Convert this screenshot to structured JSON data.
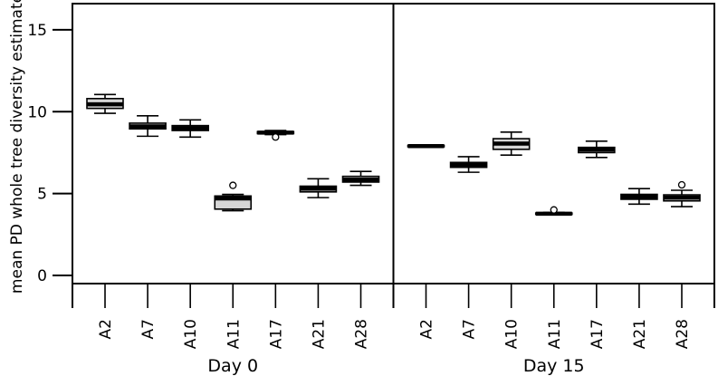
{
  "chart_data": {
    "type": "boxplot",
    "title": "",
    "xlabel": "",
    "ylabel": "mean PD whole tree diversity estimate",
    "ylim": [
      -0.5,
      16.6
    ],
    "y_ticks": [
      0,
      5,
      10,
      15
    ],
    "grid": false,
    "legend": "none",
    "categories": [
      "A2",
      "A7",
      "A10",
      "A11",
      "A17",
      "A21",
      "A28"
    ],
    "panels": [
      {
        "label": "Day 0",
        "boxes": [
          {
            "category": "A2",
            "whisker_low": 9.9,
            "q1": 10.2,
            "median": 10.45,
            "q3": 10.8,
            "whisker_high": 11.05,
            "outliers": []
          },
          {
            "category": "A7",
            "whisker_low": 8.5,
            "q1": 8.95,
            "median": 9.1,
            "q3": 9.3,
            "whisker_high": 9.75,
            "outliers": []
          },
          {
            "category": "A10",
            "whisker_low": 8.45,
            "q1": 8.85,
            "median": 9.0,
            "q3": 9.15,
            "whisker_high": 9.5,
            "outliers": []
          },
          {
            "category": "A11",
            "whisker_low": 3.95,
            "q1": 4.05,
            "median": 4.7,
            "q3": 4.85,
            "whisker_high": 4.95,
            "outliers": [
              5.5
            ]
          },
          {
            "category": "A17",
            "whisker_low": 8.6,
            "q1": 8.66,
            "median": 8.72,
            "q3": 8.78,
            "whisker_high": 8.85,
            "outliers": [
              8.45
            ]
          },
          {
            "category": "A21",
            "whisker_low": 4.75,
            "q1": 5.1,
            "median": 5.3,
            "q3": 5.45,
            "whisker_high": 5.9,
            "outliers": []
          },
          {
            "category": "A28",
            "whisker_low": 5.5,
            "q1": 5.7,
            "median": 5.85,
            "q3": 6.05,
            "whisker_high": 6.35,
            "outliers": []
          }
        ]
      },
      {
        "label": "Day 15",
        "boxes": [
          {
            "category": "A2",
            "whisker_low": 7.82,
            "q1": 7.86,
            "median": 7.9,
            "q3": 7.94,
            "whisker_high": 7.98,
            "outliers": []
          },
          {
            "category": "A7",
            "whisker_low": 6.3,
            "q1": 6.6,
            "median": 6.75,
            "q3": 6.9,
            "whisker_high": 7.25,
            "outliers": []
          },
          {
            "category": "A10",
            "whisker_low": 7.35,
            "q1": 7.7,
            "median": 8.05,
            "q3": 8.35,
            "whisker_high": 8.75,
            "outliers": []
          },
          {
            "category": "A11",
            "whisker_low": 3.7,
            "q1": 3.73,
            "median": 3.77,
            "q3": 3.81,
            "whisker_high": 3.85,
            "outliers": [
              4.0
            ]
          },
          {
            "category": "A17",
            "whisker_low": 7.2,
            "q1": 7.5,
            "median": 7.68,
            "q3": 7.82,
            "whisker_high": 8.2,
            "outliers": []
          },
          {
            "category": "A21",
            "whisker_low": 4.35,
            "q1": 4.65,
            "median": 4.8,
            "q3": 4.95,
            "whisker_high": 5.3,
            "outliers": []
          },
          {
            "category": "A28",
            "whisker_low": 4.2,
            "q1": 4.55,
            "median": 4.75,
            "q3": 4.92,
            "whisker_high": 5.2,
            "outliers": [
              5.53
            ]
          }
        ]
      }
    ],
    "style": {
      "box_fill": "#d6d6d6",
      "stroke": "#000000",
      "background": "#ffffff"
    }
  }
}
